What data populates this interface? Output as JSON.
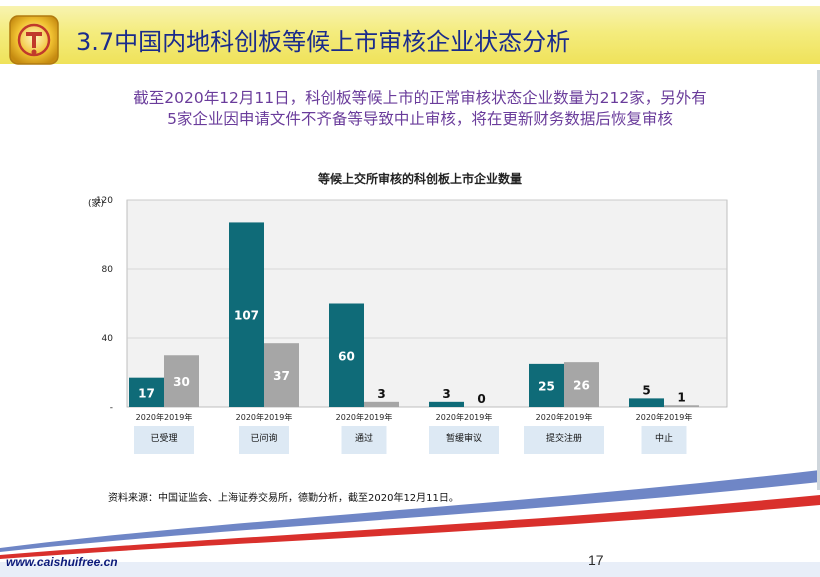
{
  "header": {
    "title": "3.7中国内地科创板等候上市审核企业状态分析"
  },
  "summary": {
    "line1": "截至2020年12月11日，科创板等候上市的正常审核状态企业数量为212家，另外有",
    "line2": "5家企业因申请文件不齐备等导致中止审核，将在更新财务数据后恢复审核"
  },
  "colors": {
    "series_2020": "#0f6b78",
    "series_2019": "#a6a6a6",
    "title_bar": "#f3ea72",
    "title_text": "#1a2b8c",
    "summary_text": "#6a3c9b",
    "category_box": "#dde9f4",
    "footer_blue": "#6f86c6",
    "footer_red": "#d9302c"
  },
  "chart_data": {
    "type": "bar",
    "title": "等候上交所审核的科创板上市企业数量",
    "ylabel": "(家)",
    "ylim": [
      0,
      120
    ],
    "yticks": [
      "-",
      "40",
      "80",
      "120"
    ],
    "grid": true,
    "categories": [
      "已受理",
      "已问询",
      "通过",
      "暂缓审议",
      "提交注册",
      "中止"
    ],
    "sub_label": "2020年2019年",
    "series": [
      {
        "key": "2020",
        "values": [
          17,
          107,
          60,
          3,
          25,
          5
        ],
        "labels": [
          "17",
          "107",
          "60",
          "3",
          "25",
          "5"
        ]
      },
      {
        "key": "2019",
        "values": [
          30,
          37,
          3,
          0,
          26,
          1
        ],
        "labels": [
          "30",
          "37",
          "3",
          "0",
          "26",
          "1"
        ]
      }
    ]
  },
  "source": "资料来源：中国证监会、上海证券交易所，德勤分析，截至2020年12月11日。",
  "footer": {
    "url": "www.caishuifree.cn",
    "page": "17"
  }
}
